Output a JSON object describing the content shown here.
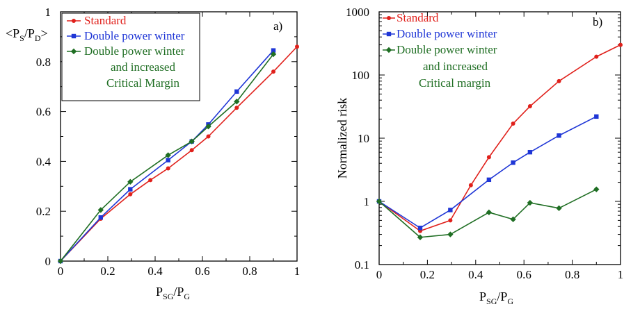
{
  "chart_data": [
    {
      "type": "line",
      "panel_label": "a)",
      "ylabel": {
        "open": "<P",
        "sub1": "S",
        "slash": "/P",
        "sub2": "D",
        "close": ">"
      },
      "xlabel": {
        "main1": "P",
        "sub1": "SG",
        "slash": "/P",
        "sub2": "G"
      },
      "xlim": [
        0,
        1
      ],
      "ylim": [
        0,
        1
      ],
      "xticks": [
        0,
        0.2,
        0.4,
        0.6,
        0.8,
        1
      ],
      "xtick_labels": [
        "0",
        "0.2",
        "0.4",
        "0.6",
        "0.8",
        "1"
      ],
      "yticks": [
        0,
        0.2,
        0.4,
        0.6,
        0.8,
        1
      ],
      "ytick_labels": [
        "0",
        "0.2",
        "0.4",
        "0.6",
        "0.8",
        "1"
      ],
      "legend_placement": "top-left",
      "series": [
        {
          "name": [
            "Standard"
          ],
          "color": "#e0201b",
          "marker": "circle",
          "x": [
            0,
            0.17,
            0.295,
            0.38,
            0.455,
            0.555,
            0.625,
            0.745,
            0.9,
            1.0
          ],
          "y": [
            0,
            0.17,
            0.268,
            0.325,
            0.372,
            0.445,
            0.5,
            0.615,
            0.76,
            0.86
          ]
        },
        {
          "name": [
            "Double power winter"
          ],
          "color": "#1f36d6",
          "marker": "square",
          "x": [
            0,
            0.17,
            0.295,
            0.455,
            0.555,
            0.625,
            0.745,
            0.9
          ],
          "y": [
            0,
            0.175,
            0.288,
            0.405,
            0.48,
            0.548,
            0.68,
            0.845
          ]
        },
        {
          "name": [
            "Double power winter",
            "and increased",
            "Critical Margin"
          ],
          "color": "#1f6e23",
          "marker": "diamond",
          "x": [
            0,
            0.17,
            0.295,
            0.455,
            0.555,
            0.625,
            0.745,
            0.9
          ],
          "y": [
            0,
            0.205,
            0.318,
            0.425,
            0.48,
            0.54,
            0.64,
            0.83
          ]
        }
      ]
    },
    {
      "type": "line",
      "panel_label": "b)",
      "ylabel": "Normalized risk",
      "xlabel": {
        "main1": "P",
        "sub1": "SG",
        "slash": "/P",
        "sub2": "G"
      },
      "xlim": [
        0,
        1
      ],
      "ylim": [
        0.1,
        1000
      ],
      "yscale": "log",
      "xticks": [
        0,
        0.2,
        0.4,
        0.6,
        0.8,
        1
      ],
      "xtick_labels": [
        "0",
        "0.2",
        "0.4",
        "0.6",
        "0.8",
        "1"
      ],
      "yticks": [
        0.1,
        1,
        10,
        100,
        1000
      ],
      "ytick_labels": [
        "0.1",
        "1",
        "10",
        "100",
        "1000"
      ],
      "legend_placement": "top-left",
      "series": [
        {
          "name": [
            "Standard"
          ],
          "color": "#e0201b",
          "marker": "circle",
          "x": [
            0,
            0.17,
            0.295,
            0.38,
            0.455,
            0.555,
            0.625,
            0.745,
            0.9,
            1.0
          ],
          "y": [
            1,
            0.34,
            0.5,
            1.8,
            5,
            17,
            32,
            80,
            195,
            300
          ]
        },
        {
          "name": [
            "Double power winter"
          ],
          "color": "#1f36d6",
          "marker": "square",
          "x": [
            0,
            0.17,
            0.295,
            0.455,
            0.555,
            0.625,
            0.745,
            0.9
          ],
          "y": [
            1,
            0.38,
            0.73,
            2.2,
            4.1,
            6,
            11,
            22
          ]
        },
        {
          "name": [
            "Double power winter",
            "and increased",
            "Critical margin"
          ],
          "color": "#1f6e23",
          "marker": "diamond",
          "x": [
            0,
            0.17,
            0.295,
            0.455,
            0.555,
            0.625,
            0.745,
            0.9
          ],
          "y": [
            1,
            0.27,
            0.3,
            0.67,
            0.52,
            0.95,
            0.78,
            1.55
          ]
        }
      ]
    }
  ]
}
